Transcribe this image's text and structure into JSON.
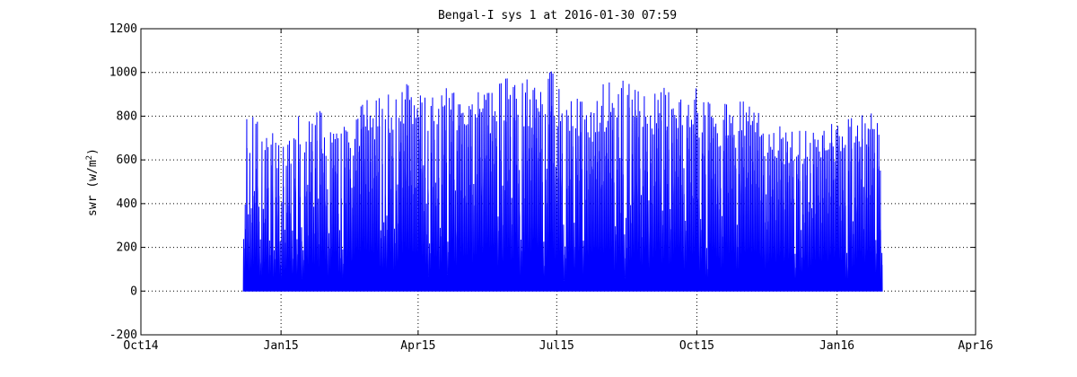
{
  "chart_data": {
    "type": "line",
    "title": "Bengal-I sys 1 at 2016-01-30 07:59",
    "xlabel": "",
    "ylabel_prefix": "swr (w/m",
    "ylabel_sup": "2",
    "ylabel_suffix": ")",
    "x_axis": {
      "type": "date",
      "range": [
        "2014-10-01",
        "2016-04-01"
      ],
      "ticks": [
        {
          "date": "2014-10-01",
          "label": "Oct14"
        },
        {
          "date": "2015-01-01",
          "label": "Jan15"
        },
        {
          "date": "2015-04-01",
          "label": "Apr15"
        },
        {
          "date": "2015-07-01",
          "label": "Jul15"
        },
        {
          "date": "2015-10-01",
          "label": "Oct15"
        },
        {
          "date": "2016-01-01",
          "label": "Jan16"
        },
        {
          "date": "2016-04-01",
          "label": "Apr16"
        }
      ]
    },
    "y_axis": {
      "range": [
        -200,
        1200
      ],
      "ticks": [
        -200,
        0,
        200,
        400,
        600,
        800,
        1000,
        1200
      ]
    },
    "grid": true,
    "grid_style": "dotted",
    "series": [
      {
        "name": "",
        "color": "#0000ff",
        "data_start": "2014-12-07",
        "data_end": "2016-01-30",
        "daily_peaks": [
          {
            "date": "2014-12-07",
            "value": 810
          },
          {
            "date": "2014-12-20",
            "value": 800
          },
          {
            "date": "2015-01-01",
            "value": 700
          },
          {
            "date": "2015-01-12",
            "value": 810
          },
          {
            "date": "2015-01-25",
            "value": 840
          },
          {
            "date": "2015-02-05",
            "value": 800
          },
          {
            "date": "2015-02-20",
            "value": 830
          },
          {
            "date": "2015-03-01",
            "value": 900
          },
          {
            "date": "2015-03-15",
            "value": 950
          },
          {
            "date": "2015-03-26",
            "value": 1000
          },
          {
            "date": "2015-04-10",
            "value": 940
          },
          {
            "date": "2015-04-25",
            "value": 930
          },
          {
            "date": "2015-05-10",
            "value": 920
          },
          {
            "date": "2015-05-25",
            "value": 960
          },
          {
            "date": "2015-05-31",
            "value": 1070
          },
          {
            "date": "2015-06-15",
            "value": 960
          },
          {
            "date": "2015-06-27",
            "value": 1010
          },
          {
            "date": "2015-07-10",
            "value": 900
          },
          {
            "date": "2015-07-25",
            "value": 860
          },
          {
            "date": "2015-08-06",
            "value": 1040
          },
          {
            "date": "2015-08-18",
            "value": 990
          },
          {
            "date": "2015-09-01",
            "value": 950
          },
          {
            "date": "2015-09-15",
            "value": 960
          },
          {
            "date": "2015-09-30",
            "value": 930
          },
          {
            "date": "2015-10-15",
            "value": 860
          },
          {
            "date": "2015-11-01",
            "value": 880
          },
          {
            "date": "2015-11-20",
            "value": 780
          },
          {
            "date": "2015-12-10",
            "value": 740
          },
          {
            "date": "2016-01-01",
            "value": 790
          },
          {
            "date": "2016-01-15",
            "value": 820
          },
          {
            "date": "2016-01-27",
            "value": 850
          },
          {
            "date": "2016-01-30",
            "value": 590
          }
        ]
      }
    ]
  }
}
